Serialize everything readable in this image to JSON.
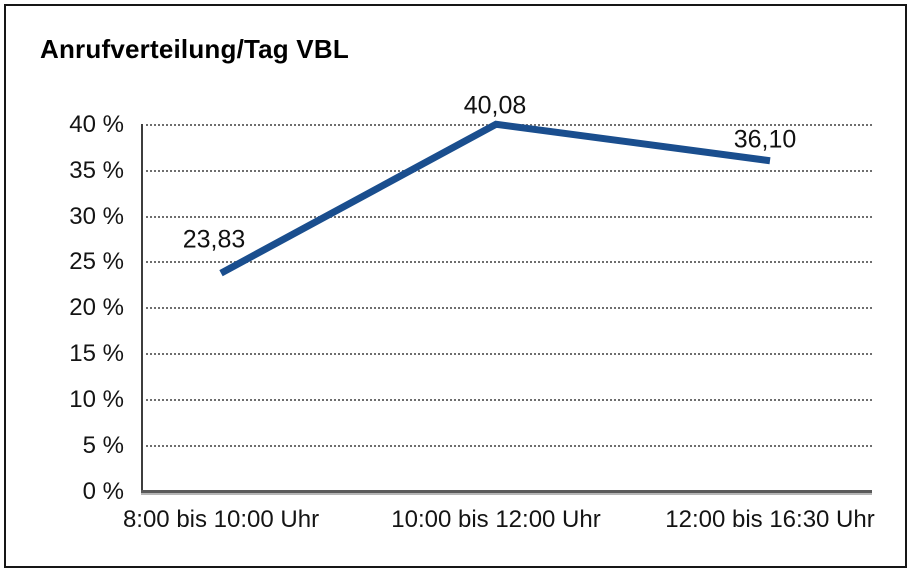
{
  "window": {
    "background_color": "#ffffff",
    "frame_border_color": "#161616"
  },
  "chart_data": {
    "type": "line",
    "title": "Anrufverteilung/Tag VBL",
    "categories": [
      "8:00 bis 10:00 Uhr",
      "10:00 bis 12:00 Uhr",
      "12:00 bis 16:30 Uhr"
    ],
    "values": [
      23.83,
      40.08,
      36.1
    ],
    "data_labels": [
      "23,83",
      "40,08",
      "36,10"
    ],
    "xlabel": "",
    "ylabel": "",
    "ylim": [
      0,
      40
    ],
    "y_axis": {
      "ticks": [
        {
          "value": 40,
          "label": "40 %"
        },
        {
          "value": 35,
          "label": "35 %"
        },
        {
          "value": 30,
          "label": "30 %"
        },
        {
          "value": 25,
          "label": "25 %"
        },
        {
          "value": 20,
          "label": "20 %"
        },
        {
          "value": 15,
          "label": "15 %"
        },
        {
          "value": 10,
          "label": "10 %"
        },
        {
          "value": 5,
          "label": "5 %"
        },
        {
          "value": 0,
          "label": "0 %"
        }
      ]
    },
    "grid": "horizontal-dotted",
    "legend_position": "none",
    "line_color": "#1a4e8e",
    "line_width": 7
  }
}
